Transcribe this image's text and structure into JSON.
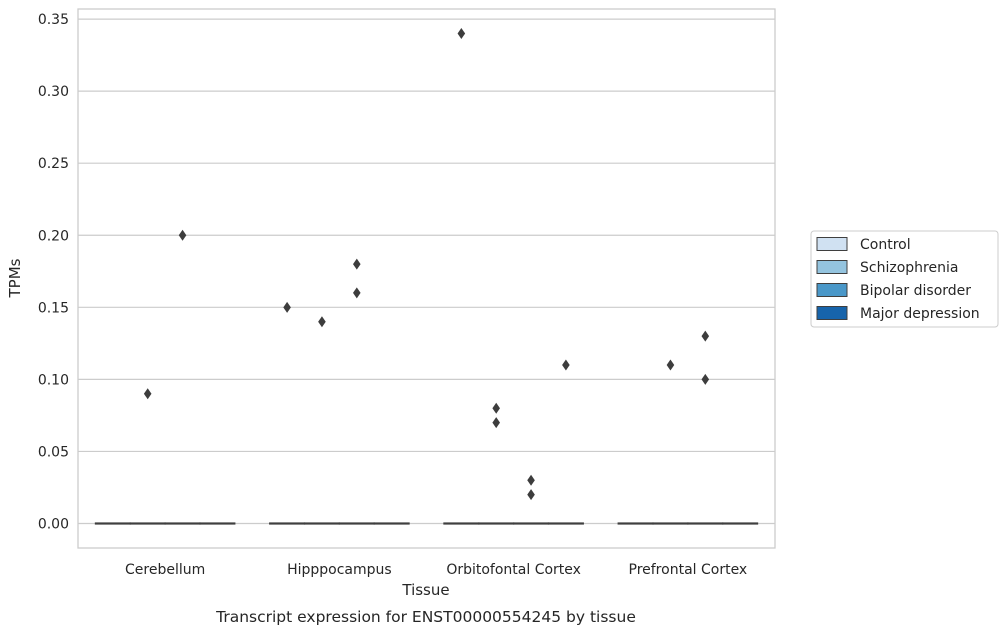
{
  "caption": "Transcript expression for ENST00000554245 by tissue",
  "chart_data": {
    "type": "box",
    "xlabel": "Tissue",
    "ylabel": "TPMs",
    "ylim": [
      -0.017,
      0.357
    ],
    "yticks": [
      0.0,
      0.05,
      0.1,
      0.15,
      0.2,
      0.25,
      0.3,
      0.35
    ],
    "ytick_labels": [
      "0.00",
      "0.05",
      "0.10",
      "0.15",
      "0.20",
      "0.25",
      "0.30",
      "0.35"
    ],
    "grid": "horizontal",
    "legend_position": "right",
    "categories": [
      "Cerebellum",
      "Hipppocampus",
      "Orbitofontal Cortex",
      "Prefrontal Cortex"
    ],
    "series": [
      {
        "name": "Control",
        "color": "#d0e1f2",
        "boxes": [
          {
            "median": 0,
            "q1": 0,
            "q3": 0,
            "outliers": []
          },
          {
            "median": 0,
            "q1": 0,
            "q3": 0,
            "outliers": [
              0.15
            ]
          },
          {
            "median": 0,
            "q1": 0,
            "q3": 0,
            "outliers": [
              0.34
            ]
          },
          {
            "median": 0,
            "q1": 0,
            "q3": 0,
            "outliers": []
          }
        ]
      },
      {
        "name": "Schizophrenia",
        "color": "#94c4df",
        "boxes": [
          {
            "median": 0,
            "q1": 0,
            "q3": 0,
            "outliers": [
              0.09
            ]
          },
          {
            "median": 0,
            "q1": 0,
            "q3": 0,
            "outliers": [
              0.14
            ]
          },
          {
            "median": 0,
            "q1": 0,
            "q3": 0,
            "outliers": [
              0.08,
              0.07
            ]
          },
          {
            "median": 0,
            "q1": 0,
            "q3": 0,
            "outliers": [
              0.11
            ]
          }
        ]
      },
      {
        "name": "Bipolar disorder",
        "color": "#4a98c9",
        "boxes": [
          {
            "median": 0,
            "q1": 0,
            "q3": 0,
            "outliers": [
              0.2
            ]
          },
          {
            "median": 0,
            "q1": 0,
            "q3": 0,
            "outliers": [
              0.18,
              0.16
            ]
          },
          {
            "median": 0,
            "q1": 0,
            "q3": 0,
            "outliers": [
              0.03,
              0.02
            ]
          },
          {
            "median": 0,
            "q1": 0,
            "q3": 0,
            "outliers": [
              0.13,
              0.1
            ]
          }
        ]
      },
      {
        "name": "Major depression",
        "color": "#1764ab",
        "boxes": [
          {
            "median": 0,
            "q1": 0,
            "q3": 0,
            "outliers": []
          },
          {
            "median": 0,
            "q1": 0,
            "q3": 0,
            "outliers": []
          },
          {
            "median": 0,
            "q1": 0,
            "q3": 0,
            "outliers": [
              0.11
            ]
          },
          {
            "median": 0,
            "q1": 0,
            "q3": 0,
            "outliers": []
          }
        ]
      }
    ]
  }
}
